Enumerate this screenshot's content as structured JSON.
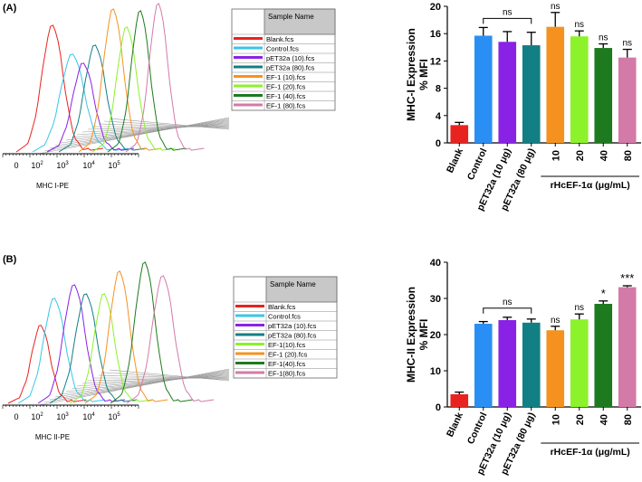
{
  "colors": {
    "blank": "#e8231f",
    "control": "#2a8ff5",
    "pet10": "#8a22e6",
    "pet80": "#127f84",
    "ef10": "#f5921f",
    "ef20": "#8cf22a",
    "ef40": "#1e7a1e",
    "ef80": "#d47aa8",
    "ctrl_line": "#38c6e6",
    "axis": "#000000",
    "table_header": "#c8c8c8"
  },
  "panels": [
    {
      "panel_label": "(A)",
      "flow": {
        "x_axis_label": "MHC I-PE",
        "tick_labels": [
          "0",
          "10",
          "10",
          "10",
          "10"
        ],
        "tick_exponents": [
          "",
          "2",
          "3",
          "4",
          "5"
        ],
        "legend_header": "Sample Name",
        "legend_rows": [
          {
            "label": "Blank.fcs",
            "color_key": "blank"
          },
          {
            "label": "Control.fcs",
            "color_key": "ctrl_line"
          },
          {
            "label": "pET32a (10).fcs",
            "color_key": "pet10"
          },
          {
            "label": "pET32a (80).fcs",
            "color_key": "pet80"
          },
          {
            "label": "EF-1 (10).fcs",
            "color_key": "ef10"
          },
          {
            "label": "EF-1 (20).fcs",
            "color_key": "ef20"
          },
          {
            "label": "EF-1 (40).fcs",
            "color_key": "ef40"
          },
          {
            "label": "EF-1 (80).fcs",
            "color_key": "ef80"
          }
        ]
      },
      "bar": {
        "ylabel_line1": "MHC-I Expression",
        "ylabel_line2": "% MFI",
        "ylim": [
          0,
          20
        ],
        "yticks": [
          "0",
          "4",
          "8",
          "12",
          "16",
          "20"
        ],
        "group_label_prefix": "rHcEF-1",
        "group_label_alpha": "α",
        "group_label_suffix": " (μg/mL)",
        "bracket_label": "ns"
      }
    },
    {
      "panel_label": "(B)",
      "flow": {
        "x_axis_label": "MHC II-PE",
        "tick_labels": [
          "0",
          "10",
          "10",
          "10",
          "10"
        ],
        "tick_exponents": [
          "",
          "2",
          "3",
          "4",
          "5"
        ],
        "legend_header": "Sample Name",
        "legend_rows": [
          {
            "label": "Blank.fcs",
            "color_key": "blank"
          },
          {
            "label": "Control.fcs",
            "color_key": "ctrl_line"
          },
          {
            "label": "pET32a (10).fcs",
            "color_key": "pet10"
          },
          {
            "label": "pET32a (80).fcs",
            "color_key": "pet80"
          },
          {
            "label": "EF-1(10).fcs",
            "color_key": "ef20"
          },
          {
            "label": "EF-1 (20).fcs",
            "color_key": "ef10"
          },
          {
            "label": "EF-1(40).fcs",
            "color_key": "ef40"
          },
          {
            "label": "EF-1(80).fcs",
            "color_key": "ef80"
          }
        ]
      },
      "bar": {
        "ylabel_line1": "MHC-II Expression",
        "ylabel_line2": "% MFI",
        "ylim": [
          0,
          40
        ],
        "yticks": [
          "0",
          "10",
          "20",
          "30",
          "40"
        ],
        "group_label_prefix": "rHcEF-1",
        "group_label_alpha": "α",
        "group_label_suffix": " (μg/mL)",
        "bracket_label": "ns"
      }
    }
  ],
  "chart_data": [
    {
      "type": "bar",
      "title": "(A)",
      "xlabel": "rHcEF-1α (μg/mL)",
      "ylabel": "MHC-I Expression % MFI",
      "ylim": [
        0,
        20
      ],
      "categories": [
        "Blank",
        "Control",
        "pET32a (10 μg)",
        "pET32a (80 μg)",
        "10",
        "20",
        "40",
        "80"
      ],
      "values": [
        2.6,
        15.7,
        14.8,
        14.3,
        17.0,
        15.6,
        13.9,
        12.5
      ],
      "errors": [
        0.4,
        1.2,
        1.5,
        1.9,
        2.1,
        0.8,
        0.6,
        1.2
      ],
      "sig_labels": [
        "",
        "",
        "",
        "",
        "ns",
        "ns",
        "ns",
        "ns"
      ],
      "color_keys": [
        "blank",
        "control",
        "pet10",
        "pet80",
        "ef10",
        "ef20",
        "ef40",
        "ef80"
      ]
    },
    {
      "type": "bar",
      "title": "(B)",
      "xlabel": "rHcEF-1α (μg/mL)",
      "ylabel": "MHC-II Expression % MFI",
      "ylim": [
        0,
        40
      ],
      "categories": [
        "Blank",
        "Control",
        "pET32a (10 μg)",
        "pET32a (80 μg)",
        "10",
        "20",
        "40",
        "80"
      ],
      "values": [
        3.5,
        23.0,
        24.0,
        23.3,
        21.2,
        24.2,
        28.5,
        33.1
      ],
      "errors": [
        0.6,
        0.6,
        0.8,
        1.0,
        1.1,
        1.5,
        0.8,
        0.4
      ],
      "sig_labels": [
        "",
        "",
        "",
        "",
        "ns",
        "ns",
        "*",
        "***"
      ],
      "color_keys": [
        "blank",
        "control",
        "pet10",
        "pet80",
        "ef10",
        "ef20",
        "ef40",
        "ef80"
      ]
    }
  ]
}
